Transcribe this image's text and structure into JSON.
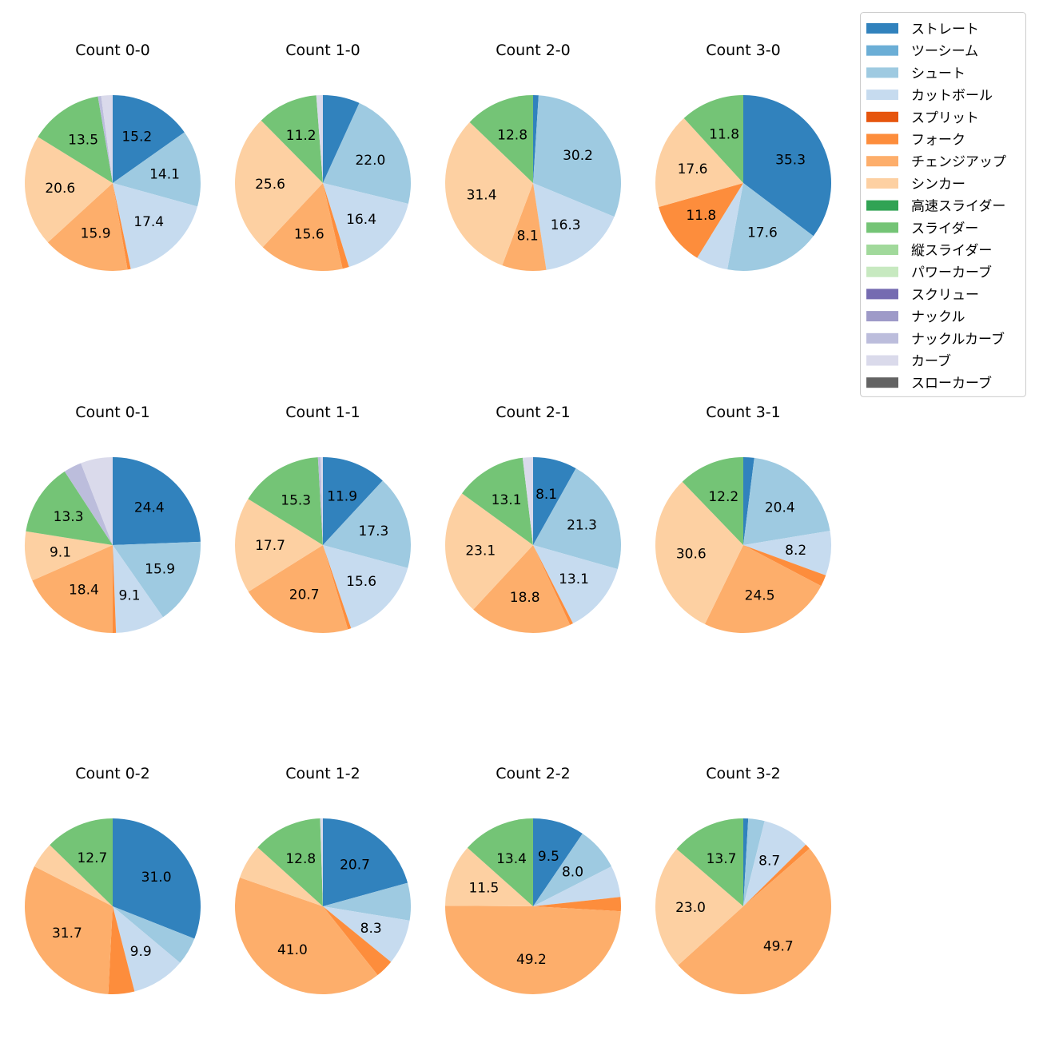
{
  "chart_data": {
    "type": "pie",
    "legend": {
      "placement": "top-right",
      "entries": [
        {
          "name": "ストレート",
          "color": "#3182bd"
        },
        {
          "name": "ツーシーム",
          "color": "#6baed6"
        },
        {
          "name": "シュート",
          "color": "#9ecae1"
        },
        {
          "name": "カットボール",
          "color": "#c6dbef"
        },
        {
          "name": "スプリット",
          "color": "#e6550d"
        },
        {
          "name": "フォーク",
          "color": "#fd8d3c"
        },
        {
          "name": "チェンジアップ",
          "color": "#fdae6b"
        },
        {
          "name": "シンカー",
          "color": "#fdd0a2"
        },
        {
          "name": "高速スライダー",
          "color": "#31a354"
        },
        {
          "name": "スライダー",
          "color": "#74c476"
        },
        {
          "name": "縦スライダー",
          "color": "#a1d99b"
        },
        {
          "name": "パワーカーブ",
          "color": "#c7e9c0"
        },
        {
          "name": "スクリュー",
          "color": "#756bb1"
        },
        {
          "name": "ナックル",
          "color": "#9e9ac8"
        },
        {
          "name": "ナックルカーブ",
          "color": "#bcbddc"
        },
        {
          "name": "カーブ",
          "color": "#dadaeb"
        },
        {
          "name": "スローカーブ",
          "color": "#636363"
        }
      ]
    },
    "pies": [
      {
        "title": "Count 0-0",
        "slices": [
          {
            "type": "ストレート",
            "value": 15.2,
            "label": "15.2"
          },
          {
            "type": "シュート",
            "value": 14.1,
            "label": "14.1"
          },
          {
            "type": "カットボール",
            "value": 17.4,
            "label": "17.4"
          },
          {
            "type": "フォーク",
            "value": 0.6
          },
          {
            "type": "チェンジアップ",
            "value": 15.9,
            "label": "15.9"
          },
          {
            "type": "シンカー",
            "value": 20.6,
            "label": "20.6"
          },
          {
            "type": "スライダー",
            "value": 13.5,
            "label": "13.5"
          },
          {
            "type": "ナックルカーブ",
            "value": 0.6
          },
          {
            "type": "カーブ",
            "value": 2.1
          }
        ]
      },
      {
        "title": "Count 1-0",
        "slices": [
          {
            "type": "ストレート",
            "value": 6.8
          },
          {
            "type": "シュート",
            "value": 22.0,
            "label": "22.0"
          },
          {
            "type": "カットボール",
            "value": 16.4,
            "label": "16.4"
          },
          {
            "type": "フォーク",
            "value": 1.2
          },
          {
            "type": "チェンジアップ",
            "value": 15.6,
            "label": "15.6"
          },
          {
            "type": "シンカー",
            "value": 25.6,
            "label": "25.6"
          },
          {
            "type": "スライダー",
            "value": 11.2,
            "label": "11.2"
          },
          {
            "type": "カーブ",
            "value": 1.2
          }
        ]
      },
      {
        "title": "Count 2-0",
        "slices": [
          {
            "type": "ストレート",
            "value": 1.0
          },
          {
            "type": "シュート",
            "value": 30.2,
            "label": "30.2"
          },
          {
            "type": "カットボール",
            "value": 16.3,
            "label": "16.3"
          },
          {
            "type": "チェンジアップ",
            "value": 8.1,
            "label": "8.1"
          },
          {
            "type": "シンカー",
            "value": 31.4,
            "label": "31.4"
          },
          {
            "type": "スライダー",
            "value": 12.8,
            "label": "12.8"
          }
        ]
      },
      {
        "title": "Count 3-0",
        "slices": [
          {
            "type": "ストレート",
            "value": 35.3,
            "label": "35.3"
          },
          {
            "type": "シュート",
            "value": 17.6,
            "label": "17.6"
          },
          {
            "type": "カットボール",
            "value": 5.9
          },
          {
            "type": "フォーク",
            "value": 11.8,
            "label": "11.8"
          },
          {
            "type": "シンカー",
            "value": 17.6,
            "label": "17.6"
          },
          {
            "type": "スライダー",
            "value": 11.8,
            "label": "11.8"
          }
        ]
      },
      {
        "title": "Count 0-1",
        "slices": [
          {
            "type": "ストレート",
            "value": 24.4,
            "label": "24.4"
          },
          {
            "type": "シュート",
            "value": 15.9,
            "label": "15.9"
          },
          {
            "type": "カットボール",
            "value": 9.1,
            "label": "9.1"
          },
          {
            "type": "フォーク",
            "value": 0.6
          },
          {
            "type": "チェンジアップ",
            "value": 18.4,
            "label": "18.4"
          },
          {
            "type": "シンカー",
            "value": 9.1,
            "label": "9.1"
          },
          {
            "type": "スライダー",
            "value": 13.3,
            "label": "13.3"
          },
          {
            "type": "ナックルカーブ",
            "value": 3.3
          },
          {
            "type": "カーブ",
            "value": 5.9
          }
        ]
      },
      {
        "title": "Count 1-1",
        "slices": [
          {
            "type": "ストレート",
            "value": 11.9,
            "label": "11.9"
          },
          {
            "type": "シュート",
            "value": 17.3,
            "label": "17.3"
          },
          {
            "type": "カットボール",
            "value": 15.6,
            "label": "15.6"
          },
          {
            "type": "フォーク",
            "value": 0.6
          },
          {
            "type": "チェンジアップ",
            "value": 20.7,
            "label": "20.7"
          },
          {
            "type": "シンカー",
            "value": 17.7,
            "label": "17.7"
          },
          {
            "type": "スライダー",
            "value": 15.3,
            "label": "15.3"
          },
          {
            "type": "ナックルカーブ",
            "value": 0.5
          },
          {
            "type": "カーブ",
            "value": 0.4
          }
        ]
      },
      {
        "title": "Count 2-1",
        "slices": [
          {
            "type": "ストレート",
            "value": 8.1,
            "label": "8.1"
          },
          {
            "type": "シュート",
            "value": 21.3,
            "label": "21.3"
          },
          {
            "type": "カットボール",
            "value": 13.1,
            "label": "13.1"
          },
          {
            "type": "フォーク",
            "value": 0.6
          },
          {
            "type": "チェンジアップ",
            "value": 18.8,
            "label": "18.8"
          },
          {
            "type": "シンカー",
            "value": 23.1,
            "label": "23.1"
          },
          {
            "type": "スライダー",
            "value": 13.1,
            "label": "13.1"
          },
          {
            "type": "カーブ",
            "value": 1.9
          }
        ]
      },
      {
        "title": "Count 3-1",
        "slices": [
          {
            "type": "ストレート",
            "value": 2.0
          },
          {
            "type": "シュート",
            "value": 20.4,
            "label": "20.4"
          },
          {
            "type": "カットボール",
            "value": 8.2,
            "label": "8.2"
          },
          {
            "type": "フォーク",
            "value": 2.1
          },
          {
            "type": "チェンジアップ",
            "value": 24.5,
            "label": "24.5"
          },
          {
            "type": "シンカー",
            "value": 30.6,
            "label": "30.6"
          },
          {
            "type": "スライダー",
            "value": 12.2,
            "label": "12.2"
          }
        ]
      },
      {
        "title": "Count 0-2",
        "slices": [
          {
            "type": "ストレート",
            "value": 31.0,
            "label": "31.0"
          },
          {
            "type": "シュート",
            "value": 5.1
          },
          {
            "type": "カットボール",
            "value": 9.9,
            "label": "9.9"
          },
          {
            "type": "フォーク",
            "value": 4.8
          },
          {
            "type": "チェンジアップ",
            "value": 31.7,
            "label": "31.7"
          },
          {
            "type": "シンカー",
            "value": 4.8
          },
          {
            "type": "スライダー",
            "value": 12.7,
            "label": "12.7"
          }
        ]
      },
      {
        "title": "Count 1-2",
        "slices": [
          {
            "type": "ストレート",
            "value": 20.7,
            "label": "20.7"
          },
          {
            "type": "シュート",
            "value": 6.9
          },
          {
            "type": "カットボール",
            "value": 8.3,
            "label": "8.3"
          },
          {
            "type": "フォーク",
            "value": 3.4
          },
          {
            "type": "チェンジアップ",
            "value": 41.0,
            "label": "41.0"
          },
          {
            "type": "シンカー",
            "value": 6.4
          },
          {
            "type": "スライダー",
            "value": 12.8,
            "label": "12.8"
          },
          {
            "type": "カーブ",
            "value": 0.5
          }
        ]
      },
      {
        "title": "Count 2-2",
        "slices": [
          {
            "type": "ストレート",
            "value": 9.5,
            "label": "9.5"
          },
          {
            "type": "シュート",
            "value": 8.0,
            "label": "8.0"
          },
          {
            "type": "カットボール",
            "value": 5.8
          },
          {
            "type": "フォーク",
            "value": 2.6
          },
          {
            "type": "チェンジアップ",
            "value": 49.2,
            "label": "49.2"
          },
          {
            "type": "シンカー",
            "value": 11.5,
            "label": "11.5"
          },
          {
            "type": "スライダー",
            "value": 13.4,
            "label": "13.4"
          }
        ]
      },
      {
        "title": "Count 3-2",
        "slices": [
          {
            "type": "ストレート",
            "value": 0.9
          },
          {
            "type": "シュート",
            "value": 3.0
          },
          {
            "type": "カットボール",
            "value": 8.7,
            "label": "8.7"
          },
          {
            "type": "フォーク",
            "value": 1.0
          },
          {
            "type": "チェンジアップ",
            "value": 49.7,
            "label": "49.7"
          },
          {
            "type": "シンカー",
            "value": 23.0,
            "label": "23.0"
          },
          {
            "type": "スライダー",
            "value": 13.7,
            "label": "13.7"
          }
        ]
      }
    ]
  }
}
